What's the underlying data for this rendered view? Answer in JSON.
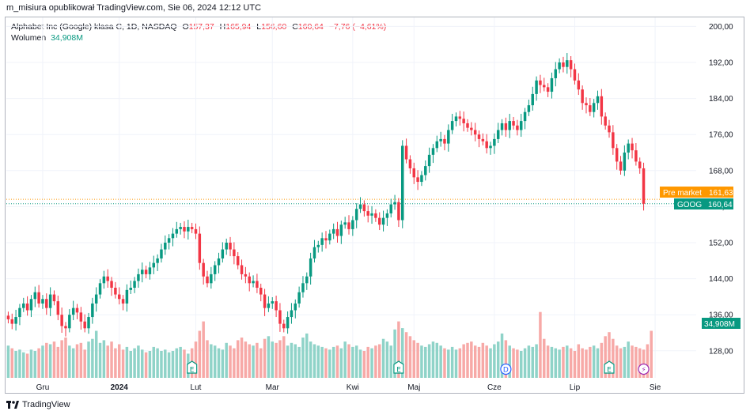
{
  "publisher": "m_misiura opublikował TradingView.com, Sie 06, 2024 12:12 UTC",
  "legend": {
    "symbol": "Alphabet Inc (Google) klasa C, 1D, NASDAQ",
    "o_label": "O",
    "o_value": "157,37",
    "h_label": "H",
    "h_value": "165,94",
    "l_label": "L",
    "l_value": "156,60",
    "c_label": "C",
    "c_value": "160,64",
    "change": "−7,76 (−4,61%)",
    "volume_label": "Wolumen",
    "volume_value": "34,908M"
  },
  "tags": {
    "pre_market_label": "Pre market",
    "pre_market_value": "161,63",
    "symbol_label": "GOOG",
    "last_value": "160,64",
    "volume_value": "34,908M"
  },
  "footer": {
    "brand": "TradingView"
  },
  "colors": {
    "up": "#089981",
    "down": "#f23645",
    "up_volume": "#8fd3c8",
    "down_volume": "#f7a9a7",
    "pre_market": "#ff9800",
    "grid": "#f0f3fa"
  },
  "chart_data": {
    "type": "candlestick",
    "ylim": [
      122,
      202
    ],
    "y_ticks": [
      "128,00",
      "136,00",
      "144,00",
      "152,00",
      "160,00",
      "168,00",
      "176,00",
      "184,00",
      "192,00",
      "200,00"
    ],
    "y_tick_values": [
      128,
      136,
      144,
      152,
      160,
      168,
      176,
      184,
      192,
      200
    ],
    "x_labels": [
      "Gru",
      "2024",
      "Lut",
      "Mar",
      "Kwi",
      "Maj",
      "Cze",
      "Lip",
      "Sie"
    ],
    "x_label_index": [
      9,
      29,
      49,
      69,
      90,
      106,
      127,
      148,
      169
    ],
    "x_range": [
      -0.5,
      172.5
    ],
    "event_markers": [
      {
        "label": "E",
        "index": 48
      },
      {
        "label": "E",
        "index": 102
      },
      {
        "label": "D",
        "index": 130
      },
      {
        "label": "E",
        "index": 157
      },
      {
        "label": "⚡",
        "index": 166
      }
    ],
    "pre_market": 161.63,
    "last_close": 160.64,
    "closes": [
      135.0,
      134.0,
      135.5,
      137.5,
      138.5,
      137.0,
      139.5,
      141.0,
      138.5,
      139.5,
      137.5,
      140.5,
      139.0,
      136.0,
      133.5,
      133.0,
      136.0,
      137.5,
      136.5,
      134.5,
      133.0,
      135.5,
      138.5,
      140.5,
      143.0,
      144.5,
      143.5,
      142.0,
      140.5,
      139.5,
      138.5,
      141.5,
      142.0,
      143.5,
      145.0,
      146.0,
      145.0,
      146.5,
      147.5,
      148.5,
      150.5,
      152.0,
      153.0,
      154.0,
      155.0,
      155.5,
      154.5,
      155.5,
      155.0,
      154.0,
      147.5,
      144.5,
      143.0,
      145.0,
      147.0,
      148.5,
      150.5,
      152.0,
      150.5,
      149.0,
      147.0,
      145.0,
      144.5,
      143.0,
      143.5,
      142.0,
      140.5,
      137.5,
      138.5,
      139.0,
      137.0,
      134.0,
      133.0,
      135.5,
      137.0,
      138.5,
      141.0,
      143.0,
      144.5,
      148.5,
      151.0,
      151.5,
      153.0,
      152.5,
      154.0,
      155.0,
      153.5,
      156.0,
      156.5,
      155.0,
      157.0,
      159.5,
      160.5,
      159.0,
      158.0,
      158.5,
      157.5,
      156.0,
      157.5,
      158.5,
      160.5,
      161.0,
      157.0,
      173.5,
      170.5,
      168.5,
      166.5,
      165.5,
      167.0,
      169.0,
      171.5,
      173.0,
      174.5,
      175.0,
      174.0,
      177.0,
      179.0,
      180.0,
      179.5,
      178.5,
      177.5,
      177.0,
      176.0,
      175.0,
      174.5,
      173.0,
      173.5,
      175.0,
      177.0,
      178.5,
      177.0,
      179.0,
      178.0,
      177.0,
      179.0,
      181.0,
      182.5,
      185.0,
      188.0,
      187.0,
      186.5,
      185.5,
      188.5,
      190.5,
      192.0,
      191.0,
      192.5,
      190.5,
      188.0,
      186.0,
      183.0,
      182.5,
      181.0,
      183.0,
      184.5,
      180.0,
      178.0,
      176.5,
      173.0,
      170.0,
      168.0,
      172.0,
      174.0,
      172.5,
      170.0,
      168.5,
      160.64
    ],
    "volumes": [
      24,
      22,
      20,
      21,
      19,
      18,
      21,
      20,
      22,
      24,
      26,
      25,
      27,
      23,
      28,
      30,
      24,
      22,
      25,
      26,
      21,
      27,
      29,
      35,
      26,
      28,
      24,
      27,
      22,
      25,
      21,
      23,
      20,
      22,
      24,
      21,
      19,
      20,
      23,
      22,
      20,
      21,
      19,
      20,
      22,
      23,
      21,
      18,
      22,
      27,
      35,
      42,
      28,
      25,
      24,
      22,
      21,
      26,
      24,
      22,
      28,
      30,
      27,
      25,
      24,
      26,
      22,
      29,
      31,
      27,
      26,
      28,
      31,
      24,
      26,
      25,
      23,
      30,
      33,
      27,
      25,
      24,
      23,
      22,
      21,
      23,
      24,
      22,
      27,
      25,
      23,
      24,
      21,
      20,
      23,
      22,
      24,
      25,
      29,
      27,
      24,
      36,
      42,
      37,
      34,
      31,
      28,
      26,
      24,
      23,
      25,
      27,
      26,
      24,
      22,
      21,
      23,
      21,
      22,
      25,
      26,
      27,
      24,
      23,
      26,
      24,
      22,
      25,
      27,
      33,
      28,
      24,
      22,
      21,
      20,
      22,
      24,
      23,
      25,
      49,
      29,
      24,
      23,
      22,
      21,
      23,
      24,
      22,
      20,
      25,
      22,
      21,
      23,
      24,
      22,
      26,
      31,
      34,
      29,
      24,
      22,
      23,
      27,
      24,
      23,
      22,
      21,
      25,
      35
    ]
  }
}
